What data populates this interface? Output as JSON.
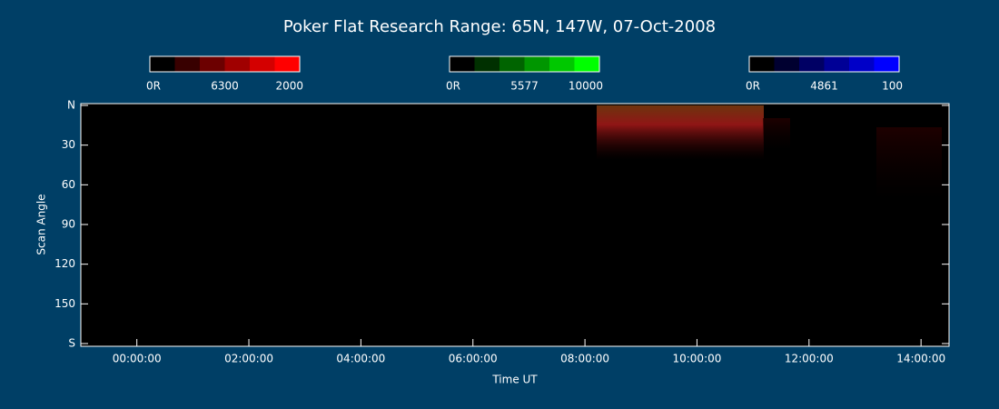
{
  "chart_data": {
    "type": "keogram",
    "title": "Poker Flat Research Range: 65N, 147W, 07-Oct-2008",
    "x_label": "Time UT",
    "y_label": "Scan Angle",
    "xlim": [
      -1,
      14.5
    ],
    "xticks": [
      {
        "value": 0,
        "label": "00:00:00"
      },
      {
        "value": 2,
        "label": "02:00:00"
      },
      {
        "value": 4,
        "label": "04:00:00"
      },
      {
        "value": 6,
        "label": "06:00:00"
      },
      {
        "value": 8,
        "label": "08:00:00"
      },
      {
        "value": 10,
        "label": "10:00:00"
      },
      {
        "value": 12,
        "label": "12:00:00"
      },
      {
        "value": 14,
        "label": "14:00:00"
      }
    ],
    "ylim": [
      0,
      180
    ],
    "yticks": [
      {
        "value": 0,
        "label": "N"
      },
      30,
      60,
      90,
      120,
      150,
      {
        "value": 180,
        "label": "S"
      }
    ],
    "colorbars": [
      {
        "min_label": "0R",
        "wavelength": "6300",
        "max": 2000,
        "colors": [
          "#000000",
          "#380000",
          "#6c0000",
          "#a00000",
          "#d40000",
          "#ff0000"
        ]
      },
      {
        "min_label": "0R",
        "wavelength": "5577",
        "max": 10000,
        "colors": [
          "#000000",
          "#003000",
          "#006400",
          "#009600",
          "#00c800",
          "#00ff00"
        ]
      },
      {
        "min_label": "0R",
        "wavelength": "4861",
        "max": 100,
        "colors": [
          "#000000",
          "#000030",
          "#000064",
          "#000096",
          "#0000c8",
          "#0000ff"
        ]
      }
    ]
  }
}
